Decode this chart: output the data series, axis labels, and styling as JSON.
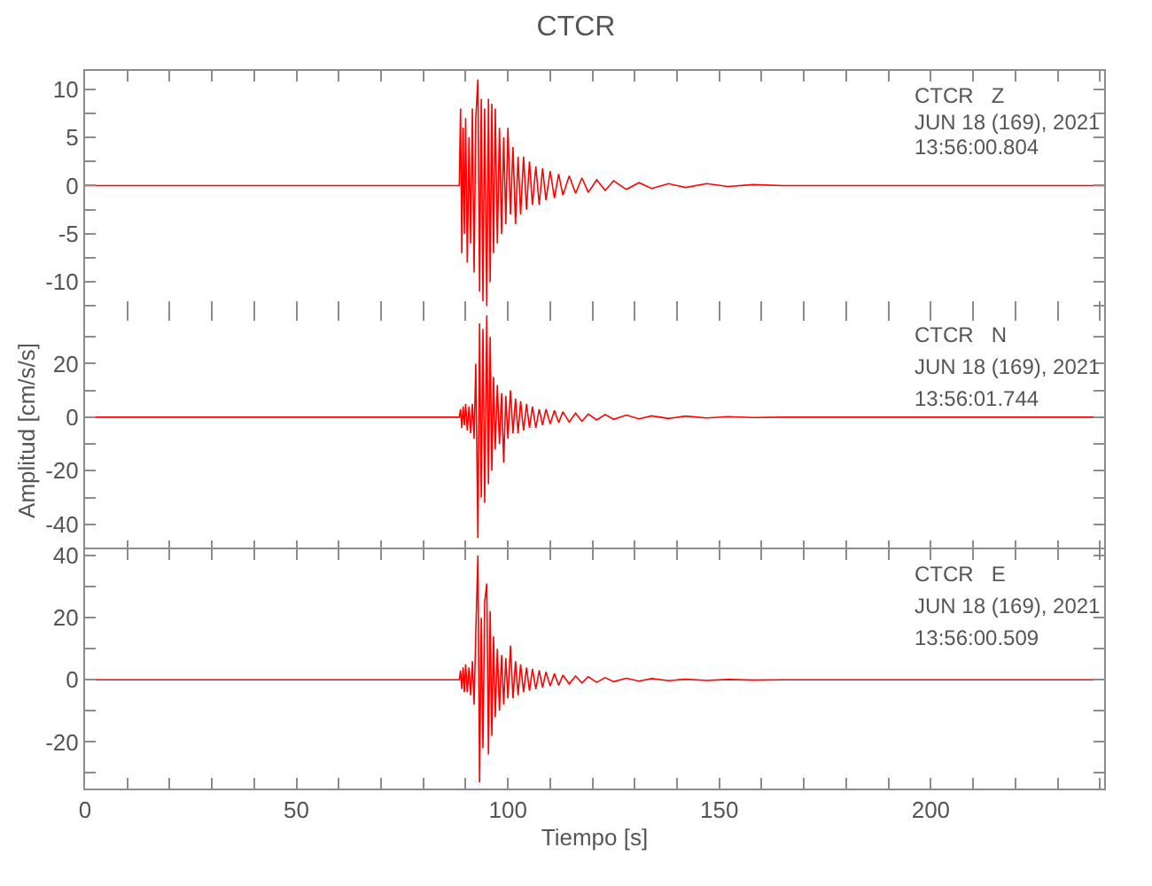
{
  "chart_data": [
    {
      "type": "line",
      "title": "CTCR",
      "tick_labels": "y",
      "annotations": [
        "CTCR   Z",
        "JUN 18 (169), 2021",
        "13:56:00.804"
      ],
      "x": [
        0,
        88.5,
        88.8,
        89.1,
        89.4,
        89.7,
        90.0,
        90.4,
        90.8,
        91.2,
        91.6,
        92.0,
        92.4,
        92.9,
        93.3,
        93.7,
        94.1,
        94.5,
        95.0,
        95.4,
        95.8,
        96.2,
        96.6,
        97.0,
        97.5,
        98.0,
        98.5,
        99.0,
        99.5,
        100.0,
        100.6,
        101.2,
        101.8,
        102.4,
        103.0,
        103.7,
        104.4,
        105.1,
        105.8,
        106.6,
        107.4,
        108.2,
        109.0,
        110.0,
        111.0,
        112.0,
        113.0,
        114.5,
        116.0,
        117.5,
        119.0,
        121.0,
        123.0,
        125.0,
        128.0,
        131.0,
        134.0,
        138.0,
        142.0,
        147.0,
        152.0,
        158.0,
        165.0,
        241
      ],
      "series": [
        {
          "color": "#ff0000",
          "values": [
            0,
            0,
            8,
            -7,
            6,
            -5,
            7,
            -8,
            5,
            -6,
            8,
            -9,
            7,
            11,
            -11,
            9,
            -12,
            8,
            -12.5,
            9,
            -10,
            8.5,
            -7,
            8,
            -6,
            6,
            -5,
            5,
            -4,
            6,
            -3,
            4,
            -4,
            3,
            -3,
            3,
            -2.5,
            2.5,
            -2,
            2,
            -2,
            1.8,
            -1.5,
            1.5,
            -1.3,
            1.2,
            -1,
            1,
            -0.8,
            0.8,
            -0.7,
            0.6,
            -0.5,
            0.5,
            -0.4,
            0.3,
            -0.3,
            0.2,
            -0.2,
            0.2,
            -0.1,
            0.1,
            0,
            0
          ]
        }
      ],
      "xlim": [
        0,
        241
      ],
      "xticks": [
        {
          "value": 0,
          "label": null
        },
        {
          "value": 10,
          "label": null
        },
        {
          "value": 20,
          "label": null
        },
        {
          "value": 30,
          "label": null
        },
        {
          "value": 40,
          "label": null
        },
        {
          "value": 50,
          "label": null
        },
        {
          "value": 60,
          "label": null
        },
        {
          "value": 70,
          "label": null
        },
        {
          "value": 80,
          "label": null
        },
        {
          "value": 90,
          "label": null
        },
        {
          "value": 100,
          "label": null
        },
        {
          "value": 110,
          "label": null
        },
        {
          "value": 120,
          "label": null
        },
        {
          "value": 130,
          "label": null
        },
        {
          "value": 140,
          "label": null
        },
        {
          "value": 150,
          "label": null
        },
        {
          "value": 160,
          "label": null
        },
        {
          "value": 170,
          "label": null
        },
        {
          "value": 180,
          "label": null
        },
        {
          "value": 190,
          "label": null
        },
        {
          "value": 200,
          "label": null
        },
        {
          "value": 210,
          "label": null
        },
        {
          "value": 220,
          "label": null
        },
        {
          "value": 230,
          "label": null
        },
        {
          "value": 240,
          "label": null
        }
      ],
      "ylim": [
        -13.1,
        11.9
      ],
      "yticks": [
        {
          "value": -12.5,
          "label": null
        },
        -10,
        {
          "value": -7.5,
          "label": null
        },
        -5,
        {
          "value": -2.5,
          "label": null
        },
        0,
        {
          "value": 2.5,
          "label": null
        },
        5,
        {
          "value": 7.5,
          "label": null
        },
        10
      ]
    },
    {
      "type": "line",
      "ylabel": "Amplitud [cm/s/s]",
      "tick_labels": "y",
      "annotations": [
        "CTCR   N",
        "JUN 18 (169), 2021",
        "13:56:01.744"
      ],
      "x": [
        0,
        88.5,
        88.8,
        89.1,
        89.4,
        89.7,
        90.0,
        90.4,
        90.8,
        91.2,
        91.6,
        92.0,
        92.4,
        92.9,
        93.3,
        93.7,
        94.1,
        94.5,
        95.0,
        95.4,
        95.8,
        96.2,
        96.6,
        97.0,
        97.5,
        98.0,
        98.5,
        99.0,
        99.5,
        100.0,
        100.6,
        101.2,
        101.8,
        102.4,
        103.0,
        103.7,
        104.4,
        105.1,
        105.8,
        106.6,
        107.4,
        108.2,
        109.0,
        110.0,
        111.0,
        112.0,
        113.0,
        114.5,
        116.0,
        117.5,
        119.0,
        121.0,
        123.0,
        125.0,
        128.0,
        131.0,
        134.0,
        138.0,
        142.0,
        147.0,
        152.0,
        158.0,
        165.0,
        241
      ],
      "series": [
        {
          "color": "#ff0000",
          "values": [
            0,
            0,
            3,
            -4,
            4,
            -3,
            5,
            -5,
            4,
            -6,
            5,
            -8,
            20,
            -45,
            35,
            -30,
            33,
            -32,
            38,
            -25,
            30,
            -20,
            15,
            -12,
            12,
            -10,
            9,
            -17,
            8,
            -8,
            10,
            -6,
            7,
            -6,
            6,
            -5,
            5,
            -4,
            4,
            -4,
            3,
            -3,
            3,
            -2.5,
            2.5,
            -2,
            2,
            -1.8,
            1.5,
            -1.5,
            1.2,
            -1,
            1,
            -0.8,
            0.8,
            -0.6,
            0.5,
            -0.5,
            0.4,
            -0.3,
            0.2,
            -0.1,
            0,
            0
          ]
        }
      ],
      "xlim": [
        0,
        241
      ],
      "xticks": [
        {
          "value": 0,
          "label": null
        },
        {
          "value": 10,
          "label": null
        },
        {
          "value": 20,
          "label": null
        },
        {
          "value": 30,
          "label": null
        },
        {
          "value": 40,
          "label": null
        },
        {
          "value": 50,
          "label": null
        },
        {
          "value": 60,
          "label": null
        },
        {
          "value": 70,
          "label": null
        },
        {
          "value": 80,
          "label": null
        },
        {
          "value": 90,
          "label": null
        },
        {
          "value": 100,
          "label": null
        },
        {
          "value": 110,
          "label": null
        },
        {
          "value": 120,
          "label": null
        },
        {
          "value": 130,
          "label": null
        },
        {
          "value": 140,
          "label": null
        },
        {
          "value": 150,
          "label": null
        },
        {
          "value": 160,
          "label": null
        },
        {
          "value": 170,
          "label": null
        },
        {
          "value": 180,
          "label": null
        },
        {
          "value": 190,
          "label": null
        },
        {
          "value": 200,
          "label": null
        },
        {
          "value": 210,
          "label": null
        },
        {
          "value": 220,
          "label": null
        },
        {
          "value": 230,
          "label": null
        },
        {
          "value": 240,
          "label": null
        }
      ],
      "ylim": [
        -50,
        40
      ],
      "yticks": [
        -40,
        {
          "value": -30,
          "label": null
        },
        -20,
        {
          "value": -10,
          "label": null
        },
        0,
        {
          "value": 10,
          "label": null
        },
        20,
        {
          "value": 30,
          "label": null
        }
      ]
    },
    {
      "type": "line",
      "xlabel": "Tiempo [s]",
      "annotations": [
        "CTCR   E",
        "JUN 18 (169), 2021",
        "13:56:00.509"
      ],
      "x": [
        0,
        88.5,
        88.8,
        89.1,
        89.4,
        89.7,
        90.0,
        90.4,
        90.8,
        91.2,
        91.6,
        92.0,
        92.4,
        92.9,
        93.3,
        93.7,
        94.1,
        94.5,
        95.0,
        95.4,
        95.8,
        96.2,
        96.6,
        97.0,
        97.5,
        98.0,
        98.5,
        99.0,
        99.5,
        100.0,
        100.6,
        101.2,
        101.8,
        102.4,
        103.0,
        103.7,
        104.4,
        105.1,
        105.8,
        106.6,
        107.4,
        108.2,
        109.0,
        110.0,
        111.0,
        112.0,
        113.0,
        114.5,
        116.0,
        117.5,
        119.0,
        121.0,
        123.0,
        125.0,
        128.0,
        131.0,
        134.0,
        138.0,
        142.0,
        147.0,
        152.0,
        158.0,
        165.0,
        241
      ],
      "series": [
        {
          "color": "#ff0000",
          "values": [
            0,
            0,
            3,
            -3,
            4,
            -4,
            5,
            -4,
            4,
            -5,
            6,
            -8,
            15,
            40,
            -33,
            20,
            -22,
            25,
            31,
            -24,
            22,
            -18,
            14,
            -12,
            10,
            -10,
            8,
            -8,
            7,
            -6,
            11,
            -6,
            6,
            -5,
            5,
            -4,
            4,
            -3.5,
            3.5,
            -3,
            3,
            -2.5,
            2.5,
            -2,
            2,
            -1.8,
            1.5,
            -1.3,
            1.2,
            -1,
            1,
            -0.8,
            0.7,
            -0.6,
            0.5,
            -0.4,
            0.4,
            -0.3,
            0.2,
            -0.2,
            0.1,
            -0.1,
            0,
            0
          ]
        }
      ],
      "xlim": [
        0,
        241
      ],
      "xticks": [
        0,
        {
          "value": 10,
          "label": null
        },
        {
          "value": 20,
          "label": null
        },
        {
          "value": 30,
          "label": null
        },
        {
          "value": 40,
          "label": null
        },
        50,
        {
          "value": 60,
          "label": null
        },
        {
          "value": 70,
          "label": null
        },
        {
          "value": 80,
          "label": null
        },
        {
          "value": 90,
          "label": null
        },
        100,
        {
          "value": 110,
          "label": null
        },
        {
          "value": 120,
          "label": null
        },
        {
          "value": 130,
          "label": null
        },
        {
          "value": 140,
          "label": null
        },
        150,
        {
          "value": 160,
          "label": null
        },
        {
          "value": 170,
          "label": null
        },
        {
          "value": 180,
          "label": null
        },
        {
          "value": 190,
          "label": null
        },
        200,
        {
          "value": 210,
          "label": null
        },
        {
          "value": 220,
          "label": null
        },
        {
          "value": 230,
          "label": null
        },
        {
          "value": 240,
          "label": null
        }
      ],
      "ylim": [
        -35,
        42
      ],
      "yticks": [
        {
          "value": -30,
          "label": null
        },
        -20,
        {
          "value": -10,
          "label": null
        },
        0,
        {
          "value": 10,
          "label": null
        },
        20,
        {
          "value": 30,
          "label": null
        },
        40
      ]
    }
  ]
}
